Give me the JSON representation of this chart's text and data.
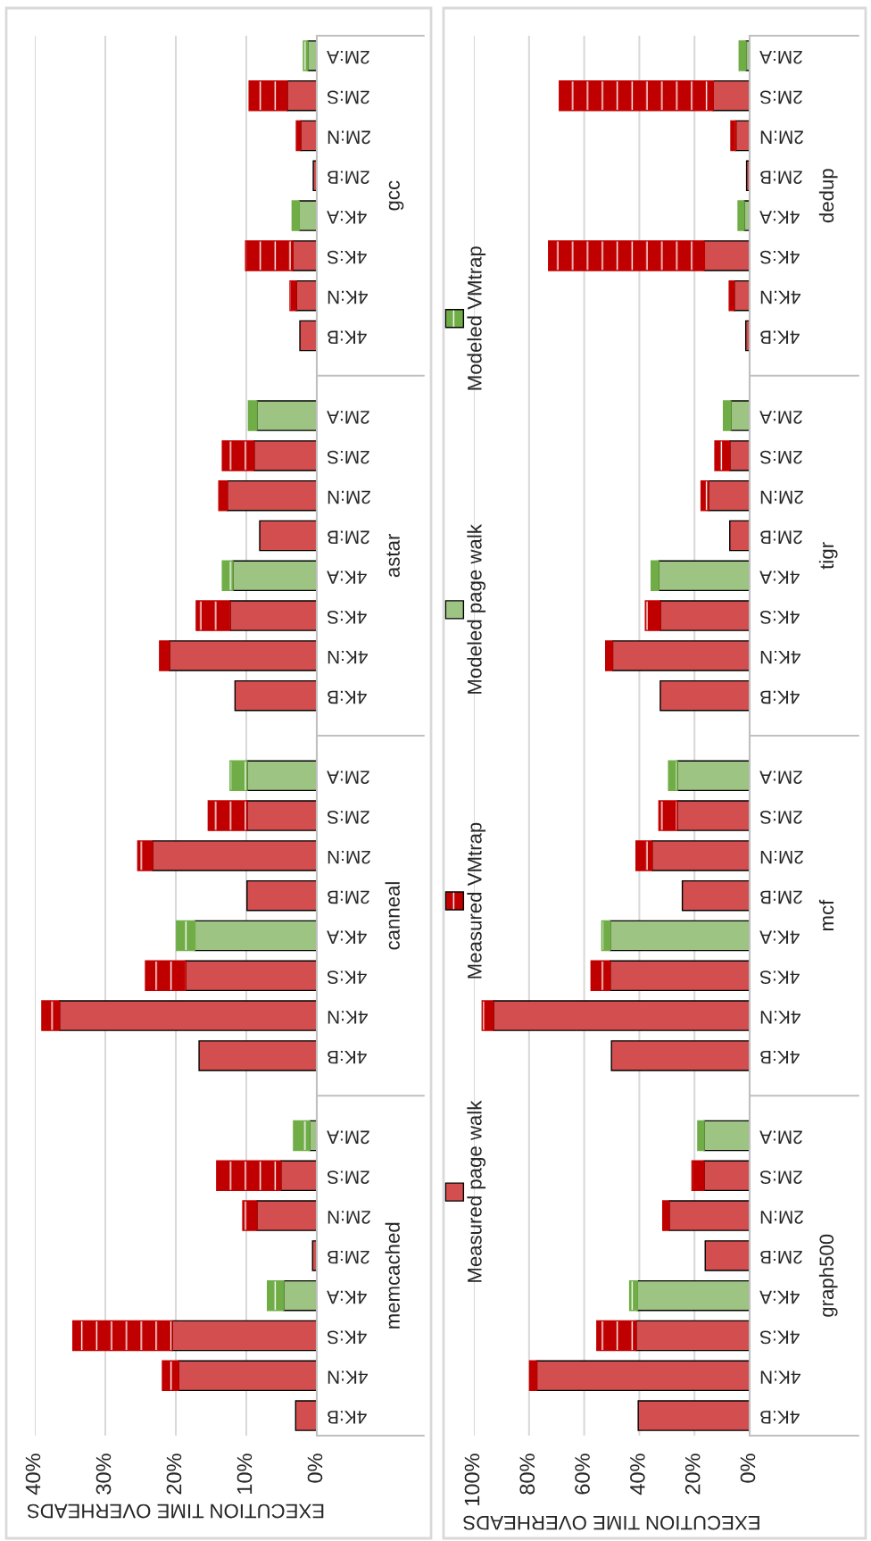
{
  "chart_data": [
    {
      "type": "bar",
      "orientation": "horizontal",
      "stacked": true,
      "grid": "x",
      "xlabel": "EXECUTION TIME OVERHEADS",
      "categories": [
        "2M:A",
        "2M:S",
        "2M:N",
        "2M:B",
        "4K:A",
        "4K:S",
        "4K:N",
        "4K:B",
        null,
        "2M:A",
        "2M:S",
        "2M:N",
        "2M:B",
        "4K:A",
        "4K:S",
        "4K:N",
        "4K:B",
        null,
        "2M:A",
        "2M:S",
        "2M:N",
        "2M:B",
        "4K:A",
        "4K:S",
        "4K:N",
        "4K:B",
        null,
        "2M:A",
        "2M:S",
        "2M:N",
        "2M:B",
        "4K:A",
        "4K:S",
        "4K:N",
        "4K:B"
      ],
      "annotations": [
        "gcc",
        "astar",
        "canneal",
        "memcached"
      ],
      "xlim": [
        40,
        0
      ],
      "xticks": [
        {
          "value": 40,
          "label": "40%"
        },
        {
          "value": 30,
          "label": "30%"
        },
        {
          "value": 20,
          "label": "20%"
        },
        {
          "value": 10,
          "label": "10%"
        },
        {
          "value": 0,
          "label": "0%"
        }
      ],
      "series": [
        {
          "color": "#d34f4f",
          "values": [
            null,
            4.2,
            2.3,
            0.5,
            null,
            3.4,
            2.9,
            2.4,
            null,
            null,
            8.9,
            12.7,
            8.1,
            null,
            12.3,
            20.9,
            11.6,
            null,
            null,
            9.9,
            23.3,
            9.9,
            null,
            18.6,
            36.5,
            16.7,
            null,
            null,
            5.1,
            8.5,
            0.6,
            null,
            20.5,
            19.6,
            3.0
          ]
        },
        {
          "color": "#c00000",
          "values": [
            null,
            5.4,
            0.6,
            null,
            null,
            6.7,
            0.9,
            null,
            null,
            null,
            4.5,
            1.2,
            null,
            null,
            4.8,
            1.4,
            null,
            null,
            null,
            5.5,
            2.1,
            null,
            null,
            5.7,
            2.5,
            null,
            null,
            null,
            9.1,
            2.0,
            null,
            null,
            14.1,
            2.3,
            null
          ]
        },
        {
          "color": "#9dc482",
          "values": [
            1.3,
            null,
            null,
            null,
            2.5,
            null,
            null,
            null,
            null,
            8.5,
            null,
            null,
            null,
            11.9,
            null,
            null,
            null,
            null,
            9.9,
            null,
            null,
            null,
            17.3,
            null,
            null,
            null,
            null,
            1.0,
            null,
            null,
            null,
            4.7,
            null,
            null,
            null
          ]
        },
        {
          "color": "#70ad47",
          "values": [
            0.6,
            null,
            null,
            null,
            1.0,
            null,
            null,
            null,
            null,
            1.2,
            null,
            null,
            null,
            1.5,
            null,
            null,
            null,
            null,
            2.4,
            null,
            null,
            null,
            2.6,
            null,
            null,
            null,
            null,
            2.3,
            null,
            null,
            null,
            2.3,
            null,
            null,
            null
          ]
        }
      ]
    },
    {
      "type": "bar",
      "orientation": "horizontal",
      "stacked": true,
      "grid": "x",
      "legend": "left",
      "xlabel": "EXECUTION TIME OVERHEADS",
      "categories": [
        "2M:A",
        "2M:S",
        "2M:N",
        "2M:B",
        "4K:A",
        "4K:S",
        "4K:N",
        "4K:B",
        null,
        "2M:A",
        "2M:S",
        "2M:N",
        "2M:B",
        "4K:A",
        "4K:S",
        "4K:N",
        "4K:B",
        null,
        "2M:A",
        "2M:S",
        "2M:N",
        "2M:B",
        "4K:A",
        "4K:S",
        "4K:N",
        "4K:B",
        null,
        "2M:A",
        "2M:S",
        "2M:N",
        "2M:B",
        "4K:A",
        "4K:S",
        "4K:N",
        "4K:B"
      ],
      "annotations": [
        "dedup",
        "tigr",
        "mcf",
        "graph500"
      ],
      "xlim": [
        100,
        0
      ],
      "xticks": [
        {
          "value": 100,
          "label": "100%"
        },
        {
          "value": 80,
          "label": "80%"
        },
        {
          "value": 60,
          "label": "60%"
        },
        {
          "value": 40,
          "label": "40%"
        },
        {
          "value": 20,
          "label": "20%"
        },
        {
          "value": 0,
          "label": "0%"
        }
      ],
      "series": [
        {
          "name": "Measured page walk",
          "color": "#d34f4f",
          "values": [
            null,
            13.2,
            5.0,
            1.1,
            null,
            16.4,
            5.6,
            1.4,
            null,
            null,
            7.2,
            14.9,
            7.2,
            null,
            32.4,
            49.7,
            32.4,
            null,
            null,
            26.2,
            35.4,
            24.4,
            null,
            50.6,
            92.9,
            50.1,
            null,
            null,
            16.5,
            29.2,
            16.1,
            null,
            41.2,
            77.2,
            40.4
          ]
        },
        {
          "name": "Measured VMtrap",
          "color": "#c00000",
          "values": [
            null,
            55.8,
            1.8,
            null,
            null,
            56.5,
            1.8,
            null,
            null,
            null,
            5.4,
            2.7,
            null,
            null,
            5.4,
            2.5,
            null,
            null,
            null,
            6.7,
            5.8,
            null,
            null,
            6.9,
            4.1,
            null,
            null,
            null,
            4.4,
            2.3,
            null,
            null,
            14.2,
            2.6,
            null
          ]
        },
        {
          "name": "Modeled page walk",
          "color": "#9dc482",
          "values": [
            1.4,
            null,
            null,
            null,
            2.0,
            null,
            null,
            null,
            null,
            6.8,
            null,
            null,
            null,
            33.0,
            null,
            null,
            null,
            null,
            26.2,
            null,
            null,
            null,
            50.6,
            null,
            null,
            null,
            null,
            16.5,
            null,
            null,
            null,
            40.7,
            null,
            null,
            null
          ]
        },
        {
          "name": "Modeled VMtrap",
          "color": "#70ad47",
          "values": [
            2.4,
            null,
            null,
            null,
            2.2,
            null,
            null,
            null,
            null,
            2.7,
            null,
            null,
            null,
            2.7,
            null,
            null,
            null,
            null,
            3.2,
            null,
            null,
            null,
            3.0,
            null,
            null,
            null,
            null,
            2.3,
            null,
            null,
            null,
            2.8,
            null,
            null,
            null
          ]
        }
      ]
    }
  ]
}
